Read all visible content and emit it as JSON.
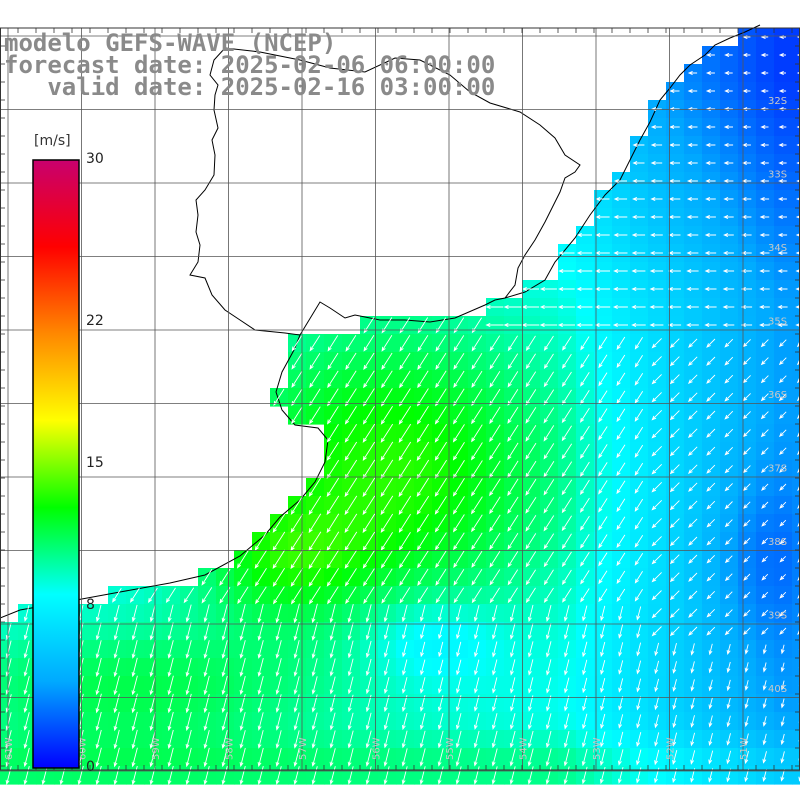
{
  "title": {
    "line1": "modelo GEFS-WAVE (NCEP)",
    "line2": "forecast date: 2025-02-06 06:00:00",
    "line3": "   valid date: 2025-02-16 03:00:00"
  },
  "colorbar": {
    "unit": "[m/s]",
    "ticks": [
      {
        "value": 30,
        "label": "30"
      },
      {
        "value": 22,
        "label": "22"
      },
      {
        "value": 15,
        "label": "15"
      },
      {
        "value": 8,
        "label": "8"
      },
      {
        "value": 0,
        "label": "0"
      }
    ],
    "range": [
      0,
      30
    ],
    "colors": [
      "#0000ff",
      "#00aaff",
      "#00ffff",
      "#00ff00",
      "#ffff00",
      "#ff8800",
      "#ff0000",
      "#c8006e"
    ]
  },
  "map": {
    "lat_labels": [
      "32S",
      "33S",
      "34S",
      "35S",
      "36S",
      "37S",
      "38S",
      "39S",
      "40S"
    ],
    "lon_labels": [
      "61W",
      "60W",
      "59W",
      "58W",
      "57W",
      "56W",
      "55W",
      "54W",
      "53W",
      "52W",
      "51W"
    ],
    "land_color": "#ffffff",
    "grid_color": "#555555"
  }
}
